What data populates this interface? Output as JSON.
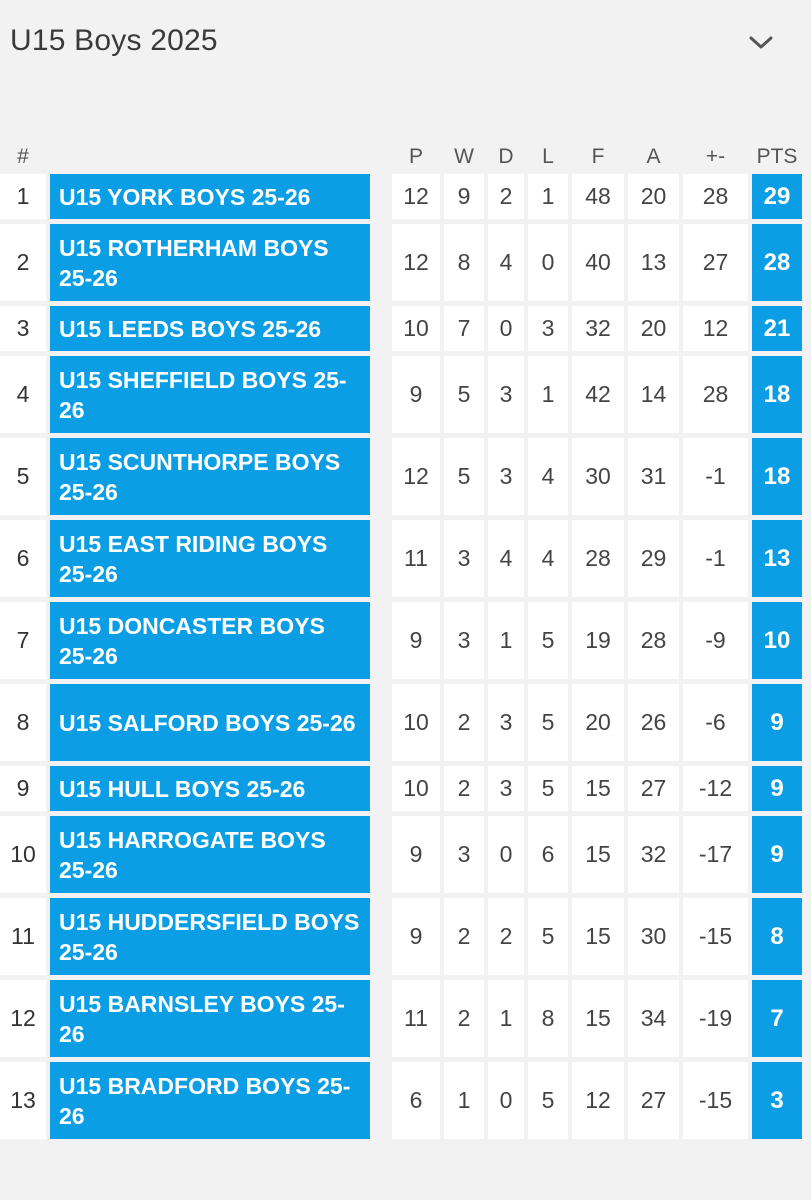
{
  "header": {
    "title": "U15 Boys 2025",
    "toggle_icon": "chevron-down-icon"
  },
  "columns": {
    "pos": "#",
    "team": "",
    "p": "P",
    "w": "W",
    "d": "D",
    "l": "L",
    "f": "F",
    "a": "A",
    "gd": "+-",
    "pts": "PTS"
  },
  "rows": [
    {
      "pos": "1",
      "team": "U15 YORK BOYS 25-26",
      "p": "12",
      "w": "9",
      "d": "2",
      "l": "1",
      "f": "48",
      "a": "20",
      "gd": "28",
      "pts": "29"
    },
    {
      "pos": "2",
      "team": "U15 ROTHERHAM BOYS 25-26",
      "p": "12",
      "w": "8",
      "d": "4",
      "l": "0",
      "f": "40",
      "a": "13",
      "gd": "27",
      "pts": "28"
    },
    {
      "pos": "3",
      "team": "U15 LEEDS BOYS 25-26",
      "p": "10",
      "w": "7",
      "d": "0",
      "l": "3",
      "f": "32",
      "a": "20",
      "gd": "12",
      "pts": "21"
    },
    {
      "pos": "4",
      "team": "U15 SHEFFIELD BOYS 25-26",
      "p": "9",
      "w": "5",
      "d": "3",
      "l": "1",
      "f": "42",
      "a": "14",
      "gd": "28",
      "pts": "18"
    },
    {
      "pos": "5",
      "team": "U15 SCUNTHORPE BOYS 25-26",
      "p": "12",
      "w": "5",
      "d": "3",
      "l": "4",
      "f": "30",
      "a": "31",
      "gd": "-1",
      "pts": "18"
    },
    {
      "pos": "6",
      "team": "U15 EAST RIDING BOYS 25-26",
      "p": "11",
      "w": "3",
      "d": "4",
      "l": "4",
      "f": "28",
      "a": "29",
      "gd": "-1",
      "pts": "13"
    },
    {
      "pos": "7",
      "team": "U15 DONCASTER BOYS 25-26",
      "p": "9",
      "w": "3",
      "d": "1",
      "l": "5",
      "f": "19",
      "a": "28",
      "gd": "-9",
      "pts": "10"
    },
    {
      "pos": "8",
      "team": "U15 SALFORD BOYS 25-26",
      "p": "10",
      "w": "2",
      "d": "3",
      "l": "5",
      "f": "20",
      "a": "26",
      "gd": "-6",
      "pts": "9"
    },
    {
      "pos": "9",
      "team": "U15 HULL BOYS 25-26",
      "p": "10",
      "w": "2",
      "d": "3",
      "l": "5",
      "f": "15",
      "a": "27",
      "gd": "-12",
      "pts": "9"
    },
    {
      "pos": "10",
      "team": "U15 HARROGATE BOYS 25-26",
      "p": "9",
      "w": "3",
      "d": "0",
      "l": "6",
      "f": "15",
      "a": "32",
      "gd": "-17",
      "pts": "9"
    },
    {
      "pos": "11",
      "team": "U15 HUDDERSFIELD BOYS 25-26",
      "p": "9",
      "w": "2",
      "d": "2",
      "l": "5",
      "f": "15",
      "a": "30",
      "gd": "-15",
      "pts": "8"
    },
    {
      "pos": "12",
      "team": "U15 BARNSLEY BOYS 25-26",
      "p": "11",
      "w": "2",
      "d": "1",
      "l": "8",
      "f": "15",
      "a": "34",
      "gd": "-19",
      "pts": "7"
    },
    {
      "pos": "13",
      "team": "U15 BRADFORD BOYS 25-26",
      "p": "6",
      "w": "1",
      "d": "0",
      "l": "5",
      "f": "12",
      "a": "27",
      "gd": "-15",
      "pts": "3"
    }
  ],
  "colors": {
    "team_bg": "#0b9ee4",
    "pts_bg": "#0b9ee4",
    "page_bg": "#f2f2f2",
    "cell_bg": "#ffffff"
  }
}
